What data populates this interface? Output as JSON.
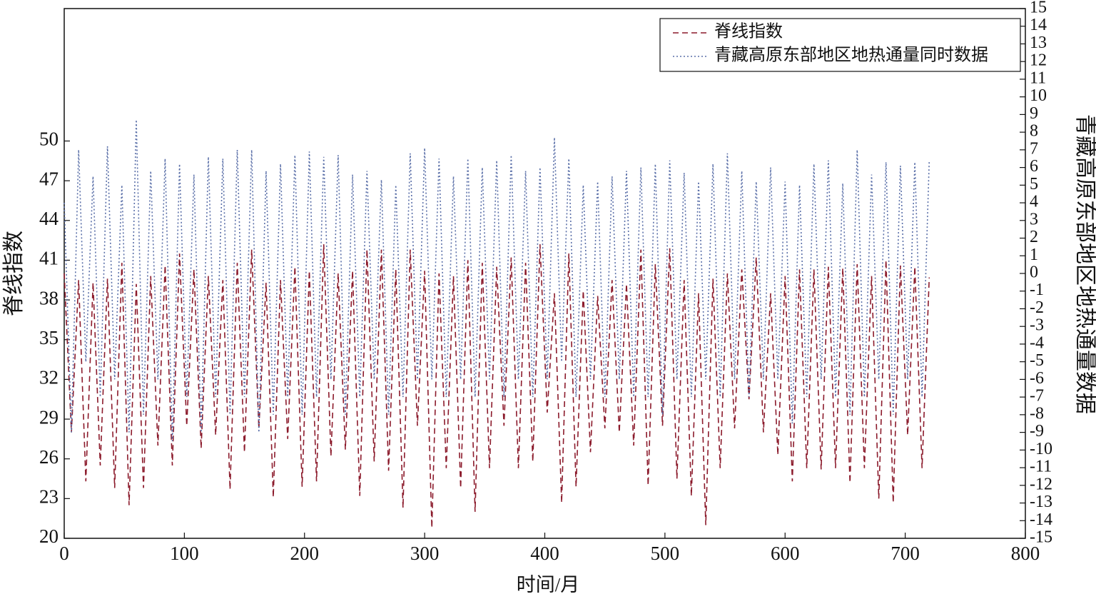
{
  "chart_data": {
    "type": "line",
    "x_label": "时间/月",
    "y_label": "脊线指数",
    "y2_label": "青藏高原东部地区地热通量数据",
    "xlim": [
      0,
      800
    ],
    "xticks": [
      0,
      100,
      200,
      300,
      400,
      500,
      600,
      700,
      800
    ],
    "ylim": [
      20,
      60
    ],
    "yticks": [
      20,
      23,
      26,
      29,
      32,
      35,
      38,
      41,
      44,
      47,
      50
    ],
    "y2lim": [
      -15,
      15
    ],
    "y2ticks": [
      -15,
      -14,
      -13,
      -12,
      -11,
      -10,
      -9,
      -8,
      -7,
      -6,
      -5,
      -4,
      -3,
      -2,
      -1,
      0,
      1,
      2,
      3,
      4,
      5,
      6,
      7,
      8,
      9,
      10,
      11,
      12,
      13,
      14,
      15
    ],
    "legend": "upper right",
    "x": [
      0,
      6,
      12,
      18,
      24,
      30,
      36,
      42,
      48,
      54,
      60,
      66,
      72,
      78,
      84,
      90,
      96,
      102,
      108,
      114,
      120,
      126,
      132,
      138,
      144,
      150,
      156,
      162,
      168,
      174,
      180,
      186,
      192,
      198,
      204,
      210,
      216,
      222,
      228,
      234,
      240,
      246,
      252,
      258,
      264,
      270,
      276,
      282,
      288,
      294,
      300,
      306,
      312,
      318,
      324,
      330,
      336,
      342,
      348,
      354,
      360,
      366,
      372,
      378,
      384,
      390,
      396,
      402,
      408,
      414,
      420,
      426,
      432,
      438,
      444,
      450,
      456,
      462,
      468,
      474,
      480,
      486,
      492,
      498,
      504,
      510,
      516,
      522,
      528,
      534,
      540,
      546,
      552,
      558,
      564,
      570,
      576,
      582,
      588,
      594,
      600,
      606,
      612,
      618,
      624,
      630,
      636,
      642,
      648,
      654,
      660,
      666,
      672,
      678,
      684,
      690,
      696,
      702,
      708,
      714,
      720
    ],
    "series": [
      {
        "name": "脊线指数",
        "color": "#8b1a2b",
        "dash": "8,5",
        "values": [
          40,
          28,
          39.5,
          24.3,
          39.3,
          25.5,
          39.6,
          23.8,
          40.8,
          22.5,
          39.2,
          23.8,
          39.8,
          27,
          40.6,
          25.5,
          41.5,
          28.5,
          40.3,
          26.8,
          39.8,
          27.8,
          39.5,
          23.7,
          40.8,
          26.5,
          41.8,
          28.3,
          39.3,
          23.1,
          39.5,
          27.5,
          40.5,
          23.9,
          40.2,
          24.3,
          42.2,
          26.2,
          40,
          26.7,
          40.2,
          23.2,
          41.8,
          25.8,
          41.8,
          25.1,
          40.3,
          22.3,
          41.8,
          28.5,
          40.2,
          20.8,
          40,
          25.3,
          39.8,
          23.8,
          41,
          22,
          40.8,
          25.3,
          40.5,
          28.5,
          41.2,
          25.3,
          40.8,
          25.8,
          42.2,
          29.5,
          38.5,
          22.7,
          41.5,
          23.9,
          38.7,
          26.5,
          38.3,
          28.3,
          39.5,
          28,
          39.2,
          27,
          41.8,
          24,
          40.7,
          28.5,
          41.9,
          24.5,
          39.5,
          23.2,
          38.5,
          21,
          39.6,
          25.3,
          40,
          28.3,
          40.3,
          30.5,
          41.2,
          28,
          38.5,
          26.3,
          39.8,
          24.3,
          40.3,
          25.3,
          40.3,
          25.2,
          40.5,
          25.3,
          40.4,
          24.2,
          40.7,
          25.3,
          39.8,
          23,
          41,
          22.7,
          40.6,
          27.8,
          40.5,
          25.3,
          39.7
        ]
      },
      {
        "name": "青藏高原东部地区地热通量同时数据",
        "color": "#5a6fa8",
        "dash": "2,3",
        "axis": "y2",
        "values": [
          4,
          -9,
          7,
          -5,
          5.5,
          -7,
          7.2,
          -6,
          5,
          -9,
          8.7,
          -8,
          5.8,
          -6,
          6.5,
          -9.5,
          6.2,
          -7,
          5.6,
          -9,
          6.6,
          -7,
          6.5,
          -8,
          7,
          -7,
          7,
          -9,
          5.8,
          -8,
          6.2,
          -7,
          6.7,
          -8,
          6.9,
          -7,
          6.6,
          -6,
          6.7,
          -8,
          5.6,
          -7,
          5.8,
          -6,
          5.3,
          -8,
          5,
          -7,
          6.8,
          -6,
          7.1,
          -6,
          6.5,
          -7,
          5.5,
          -6,
          6.5,
          -7,
          6,
          -6,
          6.4,
          -7,
          6.7,
          -6,
          5.8,
          -7,
          6,
          -6,
          7.7,
          -5,
          6.5,
          -7,
          5,
          -6,
          5.2,
          -7,
          5.5,
          -6,
          5.8,
          -7,
          6,
          -7,
          6.2,
          -8,
          6.4,
          -6,
          5.7,
          -7,
          5.2,
          -6,
          6.2,
          -7,
          6.8,
          -6,
          5.8,
          -7,
          5.2,
          -6,
          6,
          -6,
          5.2,
          -8.5,
          5,
          -7,
          6.2,
          -6,
          6.4,
          -7,
          5.1,
          -8,
          7,
          -7,
          5.6,
          -6,
          6.3,
          -8,
          6.1,
          -6,
          6.3,
          -7,
          6.4
        ]
      }
    ]
  }
}
